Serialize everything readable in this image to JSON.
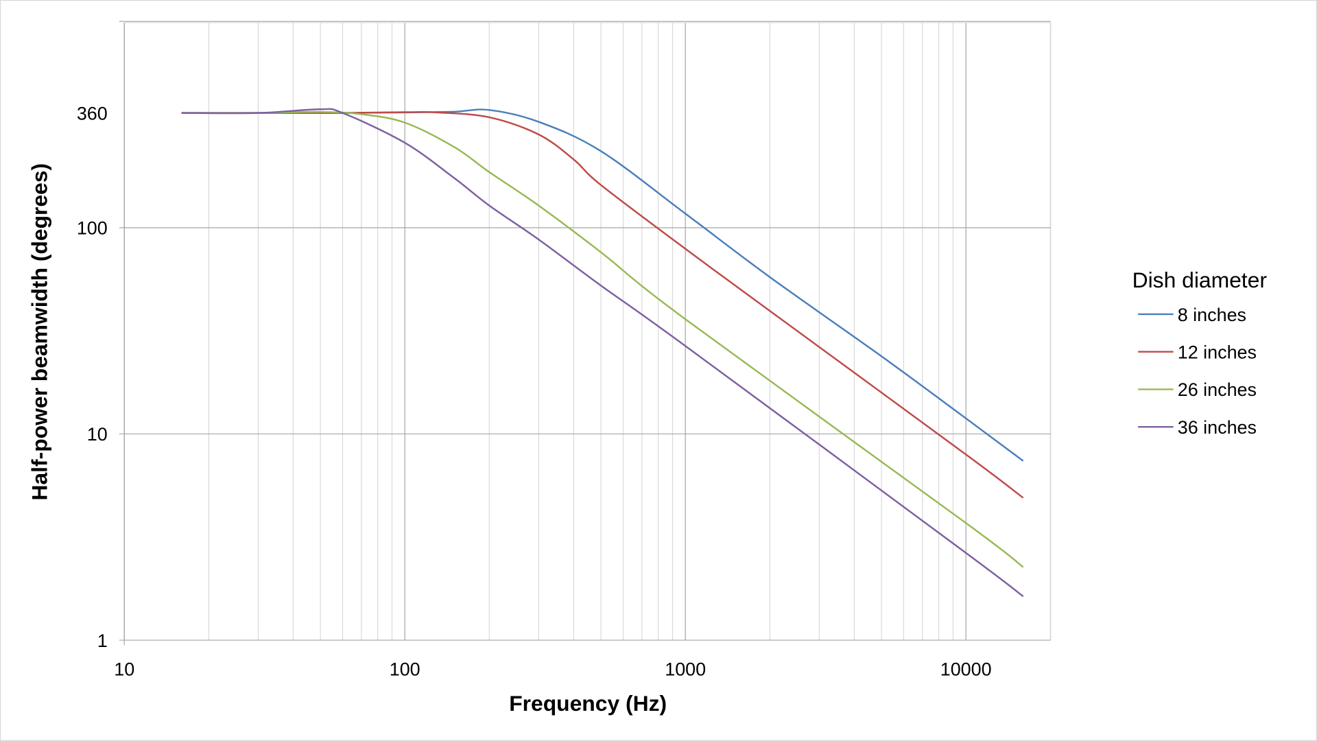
{
  "chart_data": {
    "type": "line",
    "title": "",
    "xlabel": "Frequency (Hz)",
    "ylabel": "Half-power beamwidth (degrees)",
    "xscale": "log",
    "yscale": "log",
    "xlim": [
      10,
      20000
    ],
    "ylim": [
      1,
      1000
    ],
    "xticks": [
      {
        "v": 10,
        "label": "10"
      },
      {
        "v": 100,
        "label": "100"
      },
      {
        "v": 1000,
        "label": "1000"
      },
      {
        "v": 10000,
        "label": "10000"
      }
    ],
    "yticks": [
      {
        "v": 1,
        "label": "1"
      },
      {
        "v": 10,
        "label": "10"
      },
      {
        "v": 100,
        "label": "100"
      },
      {
        "v": 360,
        "label": "360"
      }
    ],
    "grid": true,
    "legend": {
      "title": "Dish diameter",
      "placement": "right"
    },
    "series": [
      {
        "name": "8 inches",
        "color": "#4a7ebb",
        "x": [
          16,
          30,
          60,
          100,
          150,
          200,
          300,
          500,
          1000,
          2000,
          5000,
          10000,
          16000
        ],
        "y": [
          360,
          360,
          360,
          362,
          365,
          372,
          326,
          235,
          117,
          57.6,
          23.8,
          11.9,
          7.4
        ]
      },
      {
        "name": "12 inches",
        "color": "#be4b48",
        "x": [
          16,
          30,
          60,
          100,
          130,
          200,
          300,
          400,
          500,
          1000,
          2000,
          10000,
          16000
        ],
        "y": [
          360,
          360,
          360,
          363,
          362,
          343,
          283,
          214,
          161,
          79,
          39.5,
          7.95,
          4.9
        ]
      },
      {
        "name": "26 inches",
        "color": "#98b954",
        "x": [
          16,
          30,
          50,
          70,
          100,
          150,
          200,
          300,
          500,
          1000,
          10000,
          16000
        ],
        "y": [
          360,
          360,
          364,
          355,
          323,
          246,
          186,
          128,
          76,
          36,
          3.7,
          2.26
        ]
      },
      {
        "name": "36 inches",
        "color": "#7d60a0",
        "x": [
          16,
          30,
          50,
          60,
          100,
          150,
          200,
          300,
          500,
          1000,
          10000,
          16000
        ],
        "y": [
          360,
          360,
          375,
          360,
          258,
          174,
          128,
          87.6,
          52.4,
          26.7,
          2.65,
          1.63
        ]
      }
    ]
  }
}
